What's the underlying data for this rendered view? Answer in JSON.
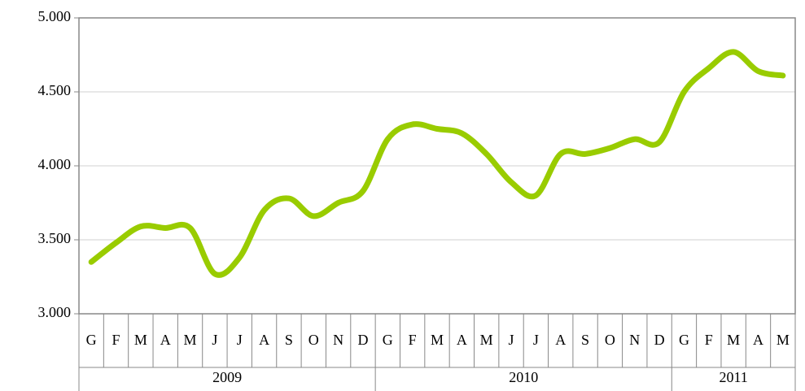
{
  "chart_data": {
    "type": "line",
    "categories": [
      "G",
      "F",
      "M",
      "A",
      "M",
      "J",
      "J",
      "A",
      "S",
      "O",
      "N",
      "D",
      "G",
      "F",
      "M",
      "A",
      "M",
      "J",
      "J",
      "A",
      "S",
      "O",
      "N",
      "D",
      "G",
      "F",
      "M",
      "A",
      "M"
    ],
    "years": [
      "2009",
      "2010",
      "2011"
    ],
    "series": [
      {
        "color": "#99cc00",
        "values": [
          3350,
          3480,
          3590,
          3580,
          3580,
          3270,
          3380,
          3700,
          3780,
          3660,
          3750,
          3830,
          4180,
          4280,
          4250,
          4220,
          4080,
          3890,
          3800,
          4080,
          4080,
          4120,
          4180,
          4160,
          4500,
          4660,
          4770,
          4640,
          4610
        ]
      }
    ],
    "ylim": [
      3000,
      5000
    ],
    "yticks": [
      {
        "value": 3000,
        "label": "3.000"
      },
      {
        "value": 3500,
        "label": "3.500"
      },
      {
        "value": 4000,
        "label": "4.000"
      },
      {
        "value": 4500,
        "label": "4.500"
      },
      {
        "value": 5000,
        "label": "5.000"
      }
    ],
    "grid": true
  }
}
